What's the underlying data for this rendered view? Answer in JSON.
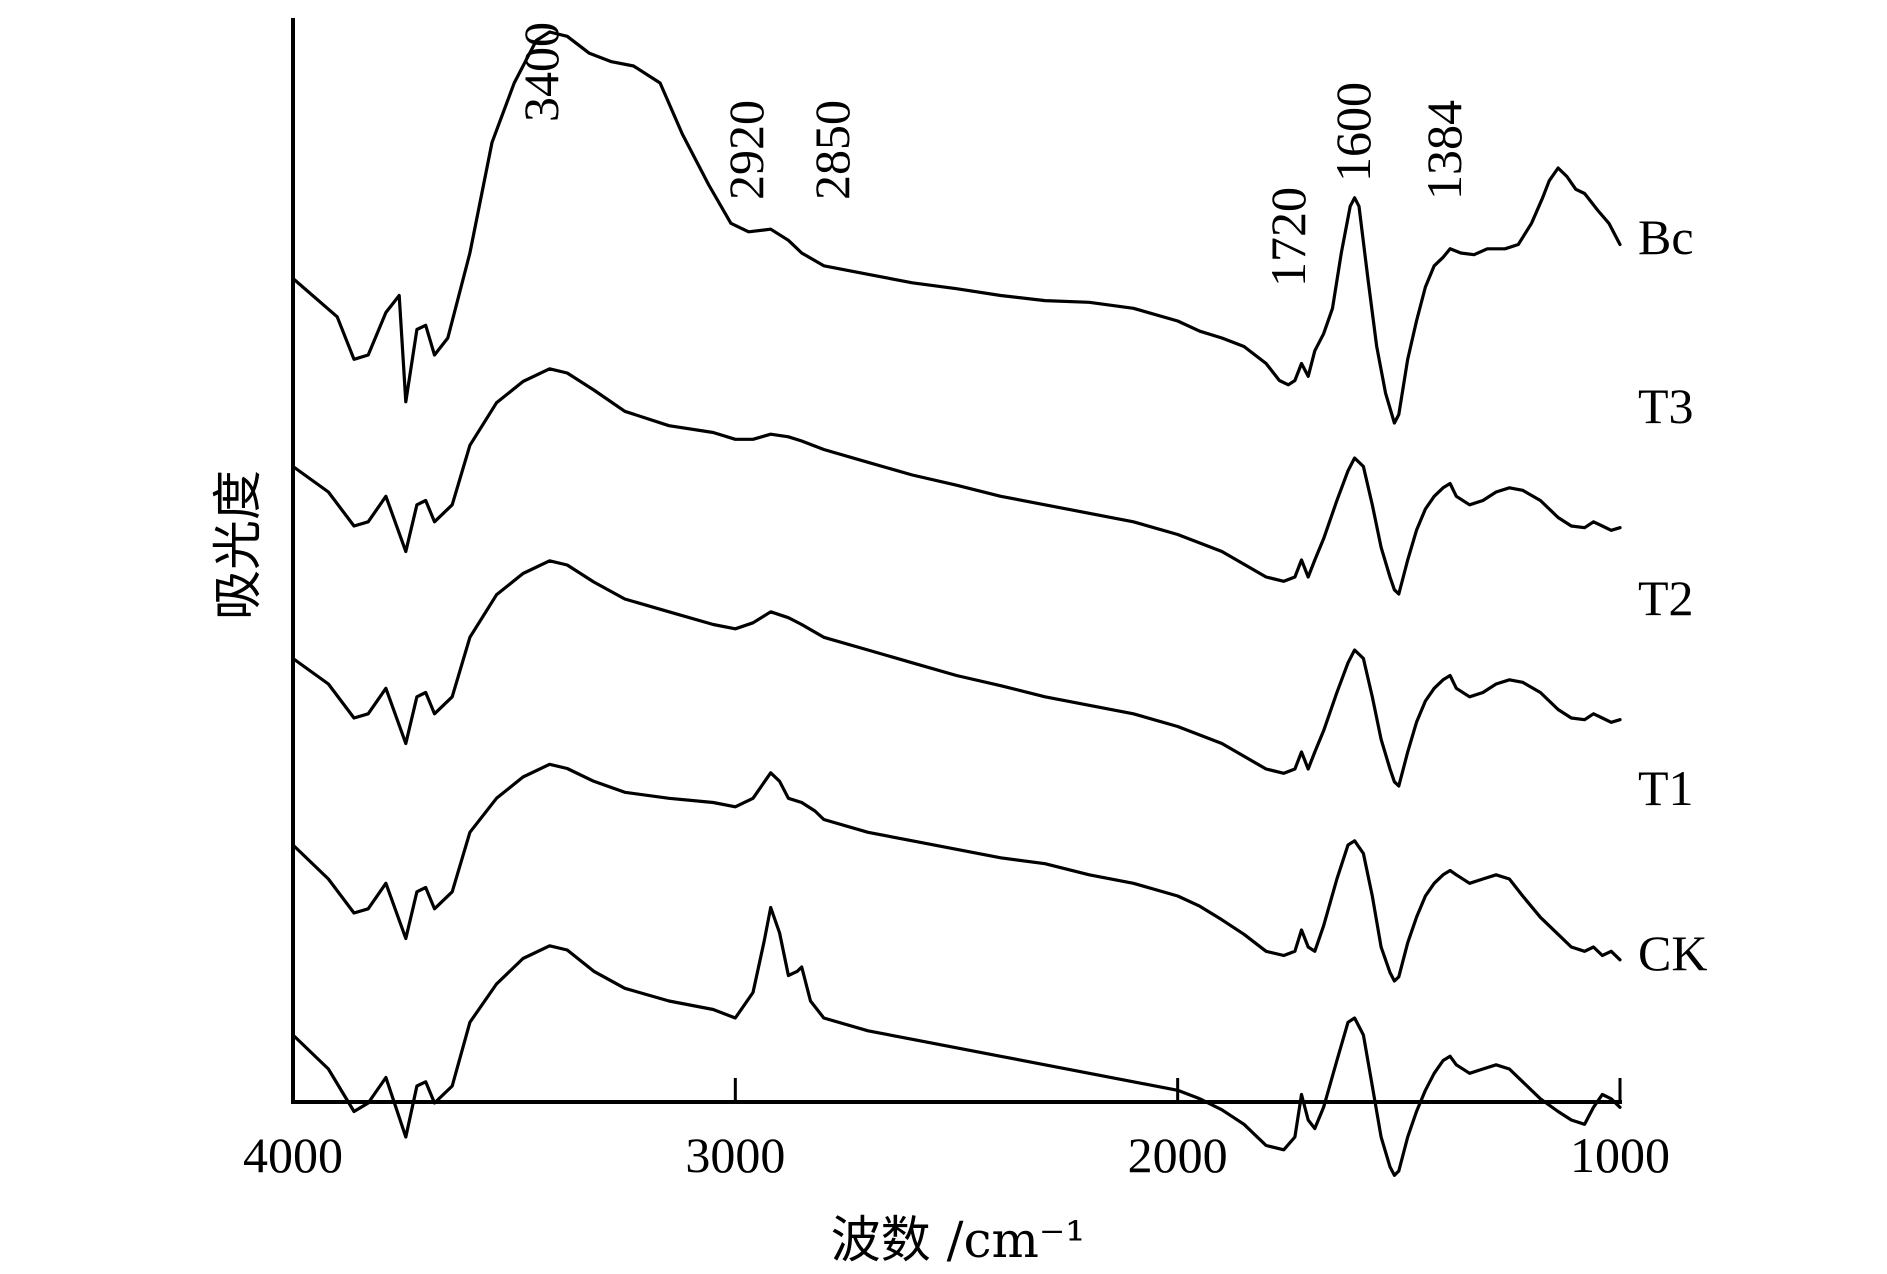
{
  "chart_data": {
    "type": "line",
    "title": "",
    "xlabel": "波数 /cm⁻¹",
    "ylabel": "吸光度",
    "xlim": [
      4000,
      1000
    ],
    "x_reversed": true,
    "y_ticks_shown": false,
    "grid": false,
    "x_ticks": [
      4000,
      3000,
      2000,
      1000
    ],
    "annotations": [
      {
        "text": "3400",
        "x": 3400
      },
      {
        "text": "2920",
        "x": 2920
      },
      {
        "text": "2850",
        "x": 2850
      },
      {
        "text": "1720",
        "x": 1720
      },
      {
        "text": "1600",
        "x": 1600
      },
      {
        "text": "1384",
        "x": 1384
      }
    ],
    "series": [
      {
        "name": "Bc",
        "x": [
          4000,
          3900,
          3862,
          3830,
          3790,
          3760,
          3745,
          3720,
          3700,
          3680,
          3650,
          3600,
          3550,
          3500,
          3450,
          3420,
          3380,
          3330,
          3280,
          3230,
          3170,
          3120,
          3060,
          3010,
          2970,
          2920,
          2880,
          2850,
          2800,
          2700,
          2600,
          2500,
          2400,
          2300,
          2200,
          2100,
          2000,
          1950,
          1900,
          1850,
          1800,
          1770,
          1750,
          1735,
          1720,
          1705,
          1690,
          1670,
          1650,
          1630,
          1610,
          1600,
          1590,
          1570,
          1550,
          1530,
          1510,
          1500,
          1480,
          1460,
          1440,
          1420,
          1400,
          1384,
          1360,
          1330,
          1300,
          1260,
          1230,
          1200,
          1175,
          1160,
          1140,
          1120,
          1100,
          1080,
          1050,
          1025,
          1000
        ],
        "values": [
          -0.1,
          -0.55,
          -1.05,
          -1.0,
          -0.5,
          -0.3,
          -1.55,
          -0.7,
          -0.65,
          -1.0,
          -0.8,
          0.2,
          1.5,
          2.2,
          2.7,
          2.8,
          2.75,
          2.55,
          2.45,
          2.4,
          2.2,
          1.6,
          1.0,
          0.55,
          0.45,
          0.48,
          0.35,
          0.2,
          0.05,
          -0.05,
          -0.15,
          -0.22,
          -0.3,
          -0.36,
          -0.38,
          -0.45,
          -0.6,
          -0.72,
          -0.8,
          -0.9,
          -1.1,
          -1.3,
          -1.35,
          -1.3,
          -1.1,
          -1.25,
          -0.95,
          -0.75,
          -0.45,
          0.2,
          0.75,
          0.85,
          0.75,
          -0.1,
          -0.9,
          -1.45,
          -1.8,
          -1.7,
          -1.05,
          -0.6,
          -0.2,
          0.05,
          0.15,
          0.25,
          0.2,
          0.18,
          0.25,
          0.25,
          0.3,
          0.55,
          0.85,
          1.05,
          1.2,
          1.1,
          0.95,
          0.9,
          0.7,
          0.55,
          0.3
        ]
      },
      {
        "name": "T3",
        "x": [
          4000,
          3920,
          3862,
          3830,
          3790,
          3745,
          3720,
          3700,
          3680,
          3640,
          3600,
          3540,
          3480,
          3420,
          3380,
          3320,
          3250,
          3150,
          3050,
          3000,
          2960,
          2920,
          2880,
          2850,
          2800,
          2700,
          2600,
          2500,
          2400,
          2300,
          2200,
          2100,
          2000,
          1950,
          1900,
          1850,
          1800,
          1760,
          1735,
          1720,
          1705,
          1690,
          1670,
          1640,
          1615,
          1600,
          1580,
          1560,
          1540,
          1520,
          1510,
          1500,
          1480,
          1460,
          1440,
          1420,
          1400,
          1384,
          1370,
          1340,
          1310,
          1280,
          1250,
          1220,
          1180,
          1140,
          1110,
          1080,
          1060,
          1040,
          1020,
          1000
        ],
        "values": [
          -0.1,
          -0.4,
          -0.8,
          -0.75,
          -0.45,
          -1.1,
          -0.55,
          -0.5,
          -0.75,
          -0.55,
          0.15,
          0.65,
          0.9,
          1.05,
          1.0,
          0.8,
          0.55,
          0.38,
          0.3,
          0.22,
          0.22,
          0.28,
          0.25,
          0.2,
          0.1,
          -0.05,
          -0.2,
          -0.32,
          -0.45,
          -0.55,
          -0.65,
          -0.75,
          -0.9,
          -1.0,
          -1.1,
          -1.25,
          -1.4,
          -1.45,
          -1.4,
          -1.2,
          -1.4,
          -1.2,
          -0.95,
          -0.5,
          -0.15,
          0.0,
          -0.1,
          -0.55,
          -1.05,
          -1.4,
          -1.55,
          -1.6,
          -1.2,
          -0.85,
          -0.6,
          -0.45,
          -0.35,
          -0.3,
          -0.45,
          -0.55,
          -0.5,
          -0.4,
          -0.35,
          -0.38,
          -0.5,
          -0.7,
          -0.8,
          -0.82,
          -0.75,
          -0.8,
          -0.85,
          -0.82
        ]
      },
      {
        "name": "T2",
        "x": [
          4000,
          3920,
          3862,
          3830,
          3790,
          3745,
          3720,
          3700,
          3680,
          3640,
          3600,
          3540,
          3480,
          3420,
          3380,
          3320,
          3250,
          3150,
          3050,
          3000,
          2960,
          2920,
          2880,
          2850,
          2800,
          2700,
          2600,
          2500,
          2400,
          2300,
          2200,
          2100,
          2000,
          1950,
          1900,
          1850,
          1800,
          1760,
          1735,
          1720,
          1705,
          1690,
          1670,
          1640,
          1615,
          1600,
          1580,
          1560,
          1540,
          1520,
          1510,
          1500,
          1480,
          1460,
          1440,
          1420,
          1400,
          1384,
          1370,
          1340,
          1310,
          1280,
          1250,
          1220,
          1180,
          1140,
          1110,
          1080,
          1060,
          1040,
          1020,
          1000
        ],
        "values": [
          -0.1,
          -0.4,
          -0.8,
          -0.75,
          -0.45,
          -1.1,
          -0.55,
          -0.5,
          -0.75,
          -0.55,
          0.15,
          0.65,
          0.9,
          1.05,
          1.0,
          0.8,
          0.6,
          0.45,
          0.3,
          0.25,
          0.32,
          0.45,
          0.38,
          0.3,
          0.15,
          0.0,
          -0.15,
          -0.3,
          -0.42,
          -0.55,
          -0.65,
          -0.75,
          -0.9,
          -1.0,
          -1.1,
          -1.25,
          -1.4,
          -1.45,
          -1.4,
          -1.2,
          -1.4,
          -1.2,
          -0.95,
          -0.5,
          -0.15,
          0.0,
          -0.1,
          -0.55,
          -1.05,
          -1.4,
          -1.55,
          -1.6,
          -1.2,
          -0.85,
          -0.6,
          -0.45,
          -0.35,
          -0.3,
          -0.45,
          -0.55,
          -0.5,
          -0.4,
          -0.35,
          -0.38,
          -0.5,
          -0.7,
          -0.8,
          -0.82,
          -0.75,
          -0.8,
          -0.85,
          -0.82
        ]
      },
      {
        "name": "T1",
        "x": [
          4000,
          3920,
          3862,
          3830,
          3790,
          3745,
          3720,
          3700,
          3680,
          3640,
          3600,
          3540,
          3480,
          3420,
          3380,
          3320,
          3250,
          3150,
          3050,
          3000,
          2960,
          2920,
          2900,
          2880,
          2850,
          2820,
          2800,
          2700,
          2600,
          2500,
          2400,
          2300,
          2200,
          2100,
          2000,
          1950,
          1900,
          1850,
          1800,
          1760,
          1735,
          1720,
          1705,
          1690,
          1670,
          1640,
          1615,
          1600,
          1580,
          1560,
          1540,
          1520,
          1510,
          1500,
          1480,
          1460,
          1440,
          1420,
          1400,
          1384,
          1370,
          1340,
          1310,
          1280,
          1250,
          1220,
          1180,
          1140,
          1110,
          1080,
          1060,
          1040,
          1020,
          1000
        ],
        "values": [
          0.0,
          -0.4,
          -0.8,
          -0.75,
          -0.45,
          -1.1,
          -0.55,
          -0.5,
          -0.75,
          -0.55,
          0.15,
          0.55,
          0.8,
          0.95,
          0.9,
          0.75,
          0.62,
          0.55,
          0.5,
          0.45,
          0.55,
          0.85,
          0.75,
          0.55,
          0.5,
          0.4,
          0.3,
          0.15,
          0.05,
          -0.05,
          -0.15,
          -0.22,
          -0.35,
          -0.45,
          -0.6,
          -0.72,
          -0.88,
          -1.05,
          -1.25,
          -1.3,
          -1.25,
          -1.0,
          -1.2,
          -1.25,
          -0.95,
          -0.4,
          0.0,
          0.05,
          -0.1,
          -0.6,
          -1.2,
          -1.5,
          -1.6,
          -1.55,
          -1.15,
          -0.85,
          -0.6,
          -0.45,
          -0.35,
          -0.3,
          -0.35,
          -0.45,
          -0.4,
          -0.35,
          -0.4,
          -0.6,
          -0.85,
          -1.05,
          -1.2,
          -1.25,
          -1.2,
          -1.3,
          -1.25,
          -1.35
        ]
      },
      {
        "name": "CK",
        "x": [
          4000,
          3920,
          3862,
          3830,
          3790,
          3745,
          3720,
          3700,
          3680,
          3640,
          3600,
          3540,
          3480,
          3420,
          3380,
          3320,
          3250,
          3150,
          3050,
          3000,
          2960,
          2935,
          2920,
          2900,
          2880,
          2860,
          2850,
          2830,
          2800,
          2700,
          2600,
          2500,
          2400,
          2300,
          2200,
          2100,
          2000,
          1950,
          1900,
          1850,
          1800,
          1760,
          1735,
          1720,
          1705,
          1690,
          1670,
          1640,
          1615,
          1600,
          1580,
          1560,
          1540,
          1520,
          1510,
          1500,
          1480,
          1460,
          1440,
          1420,
          1400,
          1384,
          1370,
          1340,
          1310,
          1280,
          1250,
          1220,
          1180,
          1140,
          1110,
          1080,
          1060,
          1040,
          1020,
          1000
        ],
        "values": [
          0.0,
          -0.4,
          -0.9,
          -0.8,
          -0.5,
          -1.2,
          -0.6,
          -0.55,
          -0.8,
          -0.6,
          0.15,
          0.6,
          0.9,
          1.05,
          1.0,
          0.75,
          0.55,
          0.4,
          0.3,
          0.2,
          0.5,
          1.1,
          1.5,
          1.2,
          0.7,
          0.75,
          0.8,
          0.4,
          0.2,
          0.05,
          -0.05,
          -0.15,
          -0.25,
          -0.35,
          -0.45,
          -0.55,
          -0.65,
          -0.75,
          -0.88,
          -1.05,
          -1.3,
          -1.35,
          -1.2,
          -0.7,
          -1.0,
          -1.1,
          -0.85,
          -0.3,
          0.15,
          0.2,
          0.0,
          -0.6,
          -1.2,
          -1.55,
          -1.65,
          -1.6,
          -1.2,
          -0.9,
          -0.65,
          -0.45,
          -0.3,
          -0.25,
          -0.35,
          -0.45,
          -0.4,
          -0.35,
          -0.4,
          -0.55,
          -0.75,
          -0.9,
          -1.0,
          -1.05,
          -0.85,
          -0.7,
          -0.75,
          -0.85
        ]
      }
    ]
  }
}
